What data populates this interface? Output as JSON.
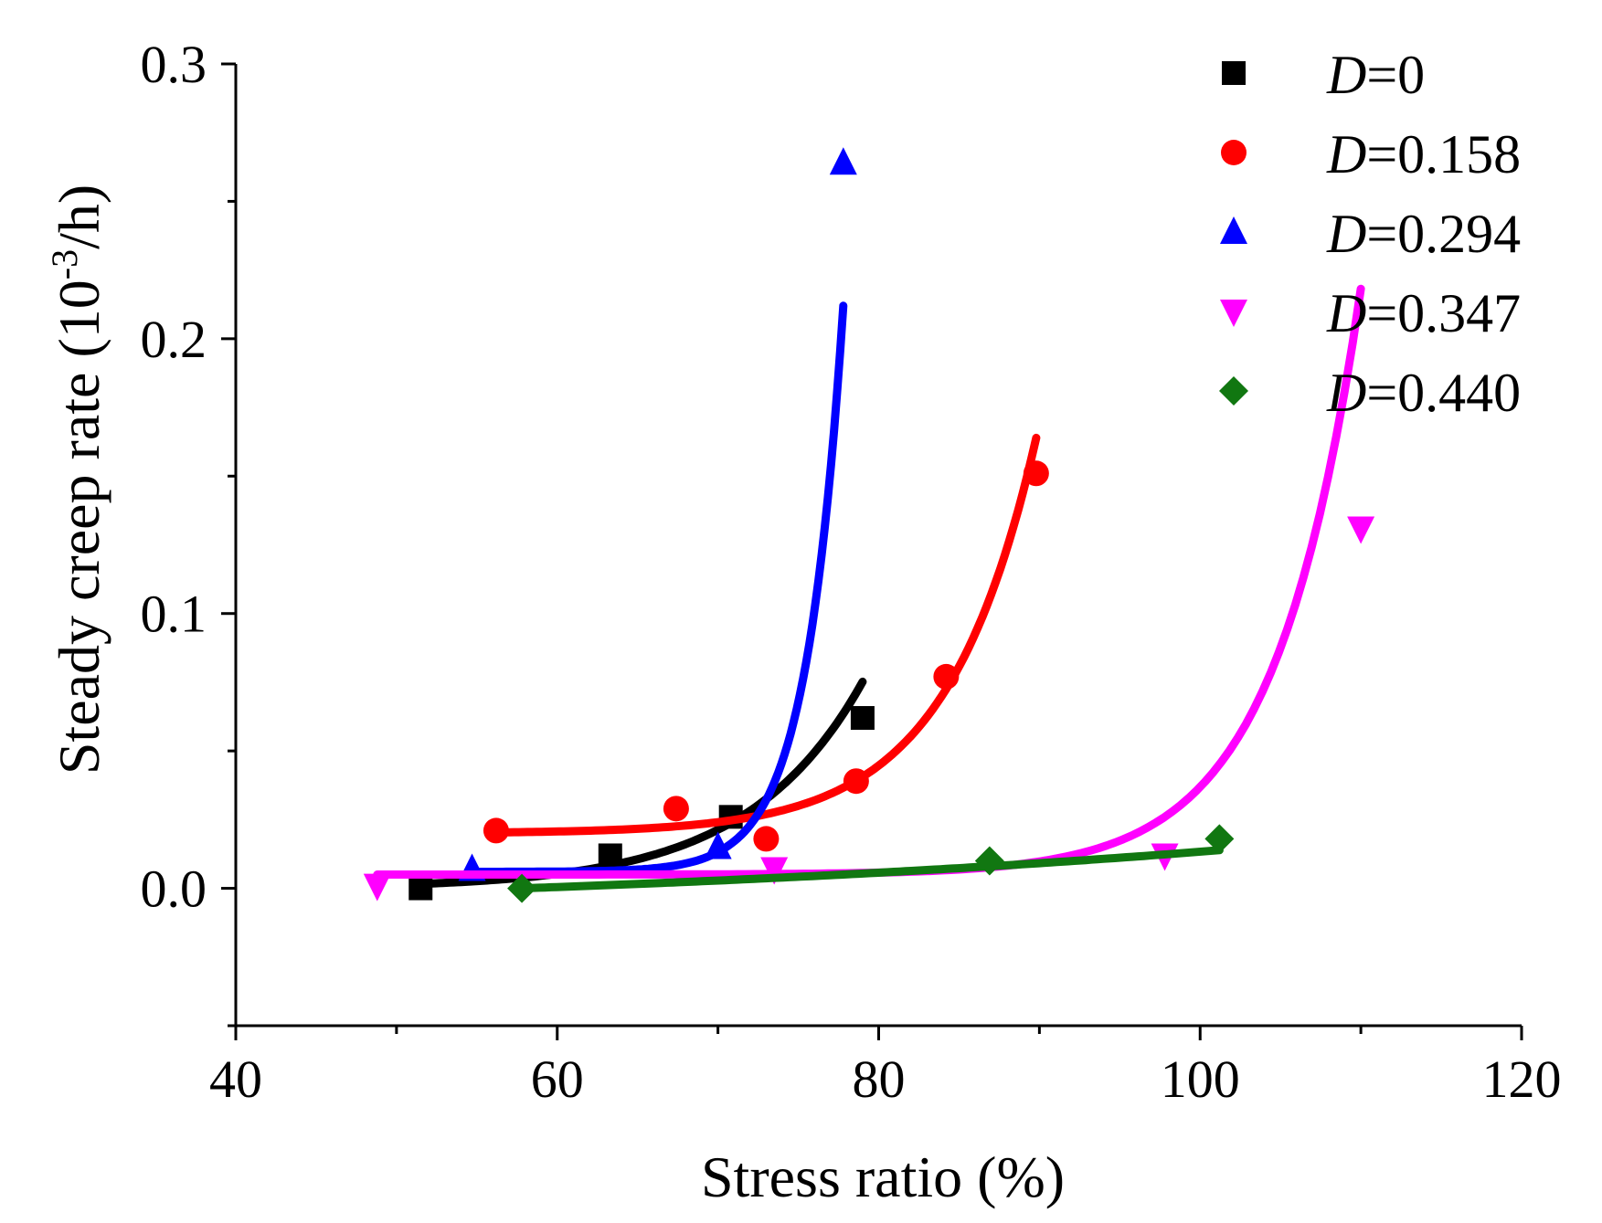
{
  "chart_data": {
    "type": "scatter",
    "title": "",
    "xlabel": "Stress ratio (%)",
    "ylabel_prefix": "Steady creep rate (10",
    "ylabel_sup": "-3",
    "ylabel_suffix": "/h)",
    "xlim": [
      40,
      120
    ],
    "ylim": [
      -0.05,
      0.3
    ],
    "x_ticks": [
      40,
      60,
      80,
      100,
      120
    ],
    "x_tick_labels": [
      "40",
      "60",
      "80",
      "100",
      "120"
    ],
    "y_ticks": [
      0.0,
      0.1,
      0.2,
      0.3
    ],
    "y_tick_labels": [
      "0.0",
      "0.1",
      "0.2",
      "0.3"
    ],
    "grid": false,
    "legend_position": "top-right",
    "series": [
      {
        "name": "D=0",
        "legend_var": "D",
        "legend_value": "=0",
        "color": "#000000",
        "marker": "square",
        "points": [
          [
            51.5,
            0.0
          ],
          [
            63.3,
            0.012
          ],
          [
            70.8,
            0.026
          ],
          [
            79.0,
            0.062
          ]
        ],
        "fit": {
          "type": "exp",
          "a": 0.0016,
          "b": 0.14,
          "x0": 51.5,
          "c": 0.0,
          "x_range": [
            51.5,
            79.0
          ]
        }
      },
      {
        "name": "D=0.158",
        "legend_var": "D",
        "legend_value": "=0.158",
        "color": "#ff0000",
        "marker": "circle",
        "points": [
          [
            56.2,
            0.021
          ],
          [
            67.4,
            0.029
          ],
          [
            73.0,
            0.018
          ],
          [
            78.6,
            0.039
          ],
          [
            84.2,
            0.077
          ],
          [
            89.8,
            0.151
          ]
        ],
        "fit": {
          "type": "exp",
          "a": 0.00034,
          "b": 0.18,
          "x0": 56.2,
          "c": 0.02,
          "x_range": [
            56.2,
            89.8
          ]
        }
      },
      {
        "name": "D=0.294",
        "legend_var": "D",
        "legend_value": "=0.294",
        "color": "#0000ff",
        "marker": "triangle-up",
        "points": [
          [
            54.7,
            0.007
          ],
          [
            70.0,
            0.015
          ],
          [
            77.8,
            0.264
          ]
        ],
        "fit": {
          "type": "exp",
          "a": 1e-05,
          "b": 0.43,
          "x0": 54.7,
          "c": 0.006,
          "x_range": [
            54.7,
            77.8
          ]
        }
      },
      {
        "name": "D=0.347",
        "legend_var": "D",
        "legend_value": "=0.347",
        "color": "#ff00ff",
        "marker": "triangle-down",
        "points": [
          [
            48.8,
            0.001
          ],
          [
            73.5,
            0.007
          ],
          [
            97.8,
            0.012
          ],
          [
            110.0,
            0.131
          ]
        ],
        "fit": {
          "type": "exp",
          "a": 1.9e-06,
          "b": 0.19,
          "x0": 48.8,
          "c": 0.005,
          "x_range": [
            48.8,
            110.0
          ]
        }
      },
      {
        "name": "D=0.440",
        "legend_var": "D",
        "legend_value": "=0.440",
        "color": "#117711",
        "marker": "diamond",
        "points": [
          [
            57.8,
            0.0
          ],
          [
            86.9,
            0.01
          ],
          [
            101.2,
            0.018
          ]
        ],
        "fit": {
          "type": "exp",
          "a": 0.011,
          "b": 0.0188,
          "x0": 57.8,
          "c": -0.011,
          "x_range": [
            57.8,
            101.2
          ]
        }
      }
    ]
  }
}
